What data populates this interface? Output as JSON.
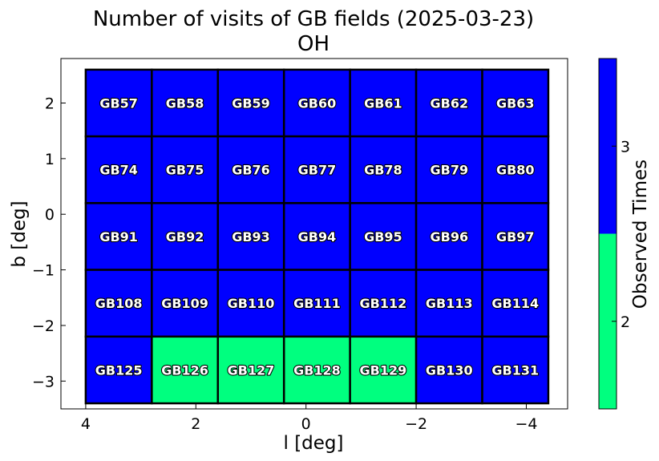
{
  "chart_data": {
    "type": "heatmap",
    "title": "Number of visits of GB fields (2025-03-23)",
    "subtitle": "OH",
    "xlabel": "l [deg]",
    "ylabel": "b [deg]",
    "xlim": [
      4.45,
      -4.75
    ],
    "ylim": [
      -3.5,
      2.8
    ],
    "x_inverted": true,
    "xticks": [
      4,
      2,
      0,
      -2,
      -4
    ],
    "xtick_labels": [
      "4",
      "2",
      "0",
      "−2",
      "−4"
    ],
    "yticks": [
      2,
      1,
      0,
      -1,
      -2,
      -3
    ],
    "ytick_labels": [
      "2",
      "1",
      "0",
      "−1",
      "−2",
      "−3"
    ],
    "field_size_deg": 1.2,
    "columns_l": [
      3.4,
      2.2,
      1.0,
      -0.2,
      -1.4,
      -2.6,
      -3.8
    ],
    "rows_b": [
      2.0,
      0.8,
      -0.4,
      -1.6,
      -2.8
    ],
    "fields": [
      [
        "GB57",
        "GB58",
        "GB59",
        "GB60",
        "GB61",
        "GB62",
        "GB63"
      ],
      [
        "GB74",
        "GB75",
        "GB76",
        "GB77",
        "GB78",
        "GB79",
        "GB80"
      ],
      [
        "GB91",
        "GB92",
        "GB93",
        "GB94",
        "GB95",
        "GB96",
        "GB97"
      ],
      [
        "GB108",
        "GB109",
        "GB110",
        "GB111",
        "GB112",
        "GB113",
        "GB114"
      ],
      [
        "GB125",
        "GB126",
        "GB127",
        "GB128",
        "GB129",
        "GB130",
        "GB131"
      ]
    ],
    "visits": [
      [
        3,
        3,
        3,
        3,
        3,
        3,
        3
      ],
      [
        3,
        3,
        3,
        3,
        3,
        3,
        3
      ],
      [
        3,
        3,
        3,
        3,
        3,
        3,
        3
      ],
      [
        3,
        3,
        3,
        3,
        3,
        3,
        3
      ],
      [
        3,
        2,
        2,
        2,
        2,
        3,
        3
      ]
    ],
    "colorbar": {
      "label": "Observed Times",
      "levels": [
        2,
        3
      ],
      "level_labels": [
        "2",
        "3"
      ],
      "colors": [
        "#00ff7f",
        "#0000ff"
      ]
    }
  }
}
